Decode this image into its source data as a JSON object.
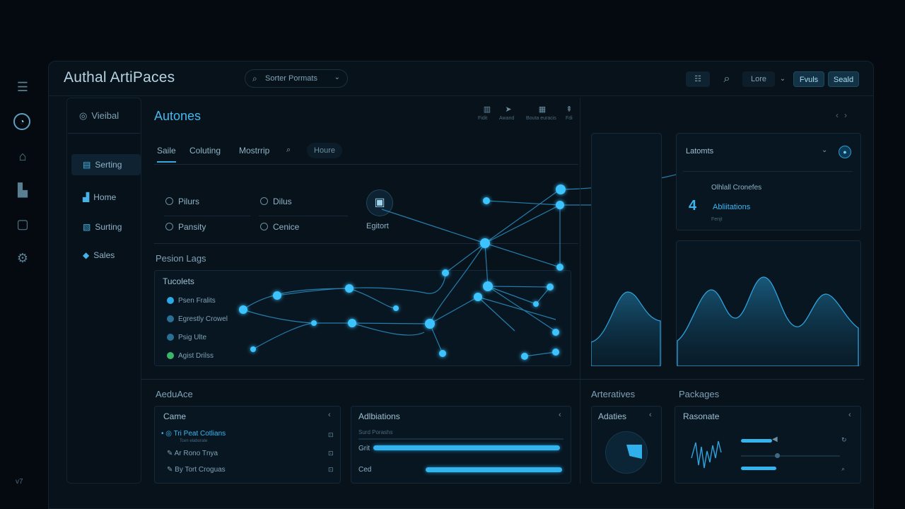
{
  "rail": {
    "version": "v7"
  },
  "app": {
    "title": "Authal ArtiPaces"
  },
  "search": {
    "label": "Sorter Pormats"
  },
  "toolbar": {
    "lore": "Lore",
    "btn_a": "Fvuls",
    "btn_b": "Seald"
  },
  "sidebar": {
    "header": "Vieibal",
    "items": [
      {
        "label": "Serting"
      },
      {
        "label": "Home"
      },
      {
        "label": "Surting"
      },
      {
        "label": "Sales"
      }
    ]
  },
  "main": {
    "title": "Autones",
    "header_icons": [
      {
        "label": "Fidit"
      },
      {
        "label": "Awand"
      },
      {
        "label": "Bouta euracis"
      },
      {
        "label": "Fdi"
      }
    ],
    "tabs": [
      "Saile",
      "Coluting",
      "Mostrrip",
      "Houre"
    ],
    "radios": [
      "Pilurs",
      "Dilus",
      "Pansity",
      "Cenice"
    ],
    "editor_label": "Egitort",
    "mid_title": "Pesion Lags",
    "list_card_title": "Tucolets",
    "list_items": [
      {
        "label": "Psen Fralits",
        "color": "#2da8e6"
      },
      {
        "label": "Egrestly Crowel",
        "color": "#2a6f95"
      },
      {
        "label": "Psig Ulte",
        "color": "#2a6f95"
      },
      {
        "label": "Agist Drilss",
        "color": "#3cb56a"
      }
    ]
  },
  "bottom": {
    "section_a": "AeduAce",
    "card_a": {
      "title": "Came",
      "rows": [
        {
          "label": "Tri Peat Cotlians",
          "sub": "Tcen elaborate"
        },
        {
          "label": "Ar Rono Tnya"
        },
        {
          "label": "By Tort Croguas"
        }
      ]
    },
    "card_b": {
      "title": "Adlbiations",
      "subtitle": "Surd Porashs",
      "rows": [
        {
          "label": "Grit",
          "value": 0.98
        },
        {
          "label": "Ced",
          "value": 0.99
        }
      ]
    },
    "section_c": "Arteratives",
    "card_c": {
      "title": "Adaties"
    },
    "section_d": "Packages",
    "card_d": {
      "title": "Rasonate"
    }
  },
  "right": {
    "card": {
      "title": "Latomts",
      "subtitle": "Olhlall Cronefes",
      "number": "4",
      "label": "Abliitations",
      "mini": "Fenjt"
    }
  },
  "colors": {
    "accent": "#33b4ef",
    "bg": "#040a10",
    "panel": "#07121b"
  }
}
